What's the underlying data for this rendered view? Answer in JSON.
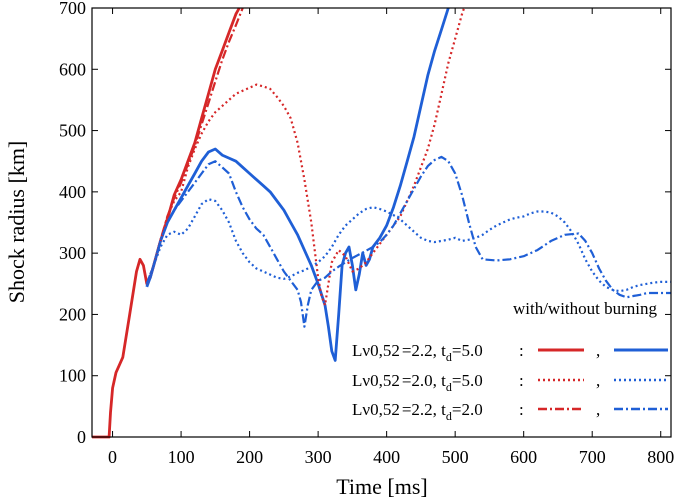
{
  "chart_data": {
    "type": "line",
    "xlabel": "Time [ms]",
    "ylabel": "Shock radius [km]",
    "xlim": [
      -30,
      815
    ],
    "ylim": [
      0,
      700
    ],
    "xticks": [
      0,
      100,
      200,
      300,
      400,
      500,
      600,
      700,
      800
    ],
    "yticks": [
      0,
      100,
      200,
      300,
      400,
      500,
      600,
      700
    ],
    "colors": {
      "with": "#d62728",
      "without": "#1f5fd6"
    },
    "legend": {
      "header": "with/without burning",
      "position": "bottom-right",
      "rows": [
        {
          "label_main": "Lν0,52",
          "label_sub": "=2.2, t",
          "td_sub": "d",
          "label_end": "=5.0",
          "colon": ":",
          "comma": ",",
          "style": "solid"
        },
        {
          "label_main": "Lν0,52",
          "label_sub": "=2.0, t",
          "td_sub": "d",
          "label_end": "=5.0",
          "colon": ":",
          "comma": ",",
          "style": "dotted"
        },
        {
          "label_main": "Lν0,52",
          "label_sub": "=2.2, t",
          "td_sub": "d",
          "label_end": "=2.0",
          "colon": ":",
          "comma": ",",
          "style": "dashdot"
        }
      ]
    },
    "series": [
      {
        "name": "Lν0,52=2.2, td=5.0 with burning",
        "color": "#d62728",
        "style": "solid",
        "points": [
          [
            -30,
            0
          ],
          [
            -5,
            0
          ],
          [
            -3,
            40
          ],
          [
            0,
            80
          ],
          [
            5,
            105
          ],
          [
            15,
            130
          ],
          [
            25,
            200
          ],
          [
            35,
            270
          ],
          [
            40,
            290
          ],
          [
            45,
            280
          ],
          [
            50,
            250
          ],
          [
            55,
            260
          ],
          [
            60,
            280
          ],
          [
            70,
            320
          ],
          [
            80,
            355
          ],
          [
            90,
            395
          ],
          [
            100,
            420
          ],
          [
            110,
            450
          ],
          [
            120,
            480
          ],
          [
            130,
            520
          ],
          [
            140,
            560
          ],
          [
            150,
            600
          ],
          [
            160,
            630
          ],
          [
            170,
            660
          ],
          [
            180,
            690
          ],
          [
            185,
            700
          ]
        ]
      },
      {
        "name": "Lν0,52=2.2, td=5.0 without burning",
        "color": "#1f5fd6",
        "style": "solid",
        "points": [
          [
            50,
            245
          ],
          [
            55,
            260
          ],
          [
            60,
            280
          ],
          [
            70,
            320
          ],
          [
            80,
            350
          ],
          [
            90,
            370
          ],
          [
            100,
            390
          ],
          [
            110,
            410
          ],
          [
            120,
            430
          ],
          [
            130,
            450
          ],
          [
            140,
            465
          ],
          [
            150,
            470
          ],
          [
            160,
            460
          ],
          [
            170,
            455
          ],
          [
            180,
            450
          ],
          [
            190,
            440
          ],
          [
            200,
            430
          ],
          [
            210,
            420
          ],
          [
            220,
            410
          ],
          [
            230,
            400
          ],
          [
            240,
            385
          ],
          [
            250,
            370
          ],
          [
            260,
            350
          ],
          [
            270,
            330
          ],
          [
            280,
            305
          ],
          [
            290,
            280
          ],
          [
            300,
            250
          ],
          [
            310,
            215
          ],
          [
            315,
            180
          ],
          [
            320,
            140
          ],
          [
            325,
            125
          ],
          [
            330,
            200
          ],
          [
            335,
            280
          ],
          [
            340,
            300
          ],
          [
            345,
            310
          ],
          [
            350,
            280
          ],
          [
            355,
            240
          ],
          [
            360,
            265
          ],
          [
            365,
            300
          ],
          [
            370,
            280
          ],
          [
            375,
            290
          ],
          [
            380,
            310
          ],
          [
            390,
            325
          ],
          [
            400,
            345
          ],
          [
            410,
            375
          ],
          [
            420,
            410
          ],
          [
            430,
            450
          ],
          [
            440,
            490
          ],
          [
            450,
            540
          ],
          [
            460,
            590
          ],
          [
            470,
            630
          ],
          [
            480,
            665
          ],
          [
            490,
            700
          ]
        ]
      },
      {
        "name": "Lν0,52=2.0, td=5.0 with burning",
        "color": "#d62728",
        "style": "dotted",
        "points": [
          [
            50,
            250
          ],
          [
            60,
            280
          ],
          [
            70,
            320
          ],
          [
            80,
            360
          ],
          [
            90,
            385
          ],
          [
            100,
            400
          ],
          [
            110,
            440
          ],
          [
            120,
            470
          ],
          [
            130,
            495
          ],
          [
            140,
            515
          ],
          [
            150,
            530
          ],
          [
            160,
            540
          ],
          [
            170,
            550
          ],
          [
            180,
            560
          ],
          [
            190,
            565
          ],
          [
            200,
            570
          ],
          [
            210,
            575
          ],
          [
            220,
            572
          ],
          [
            230,
            568
          ],
          [
            240,
            555
          ],
          [
            250,
            540
          ],
          [
            260,
            520
          ],
          [
            270,
            480
          ],
          [
            280,
            420
          ],
          [
            290,
            350
          ],
          [
            300,
            260
          ],
          [
            305,
            230
          ],
          [
            310,
            215
          ],
          [
            315,
            250
          ],
          [
            320,
            285
          ],
          [
            330,
            305
          ],
          [
            340,
            295
          ],
          [
            350,
            270
          ],
          [
            360,
            275
          ],
          [
            370,
            285
          ],
          [
            380,
            300
          ],
          [
            390,
            315
          ],
          [
            400,
            330
          ],
          [
            410,
            345
          ],
          [
            420,
            360
          ],
          [
            430,
            385
          ],
          [
            440,
            410
          ],
          [
            450,
            440
          ],
          [
            460,
            470
          ],
          [
            470,
            510
          ],
          [
            480,
            560
          ],
          [
            490,
            610
          ],
          [
            500,
            650
          ],
          [
            510,
            690
          ],
          [
            513,
            700
          ]
        ]
      },
      {
        "name": "Lν0,52=2.0, td=5.0 without burning",
        "color": "#1f5fd6",
        "style": "dotted",
        "points": [
          [
            50,
            250
          ],
          [
            60,
            280
          ],
          [
            70,
            310
          ],
          [
            80,
            330
          ],
          [
            90,
            335
          ],
          [
            100,
            330
          ],
          [
            110,
            340
          ],
          [
            120,
            360
          ],
          [
            130,
            380
          ],
          [
            140,
            388
          ],
          [
            150,
            385
          ],
          [
            160,
            370
          ],
          [
            170,
            350
          ],
          [
            180,
            320
          ],
          [
            190,
            300
          ],
          [
            200,
            285
          ],
          [
            210,
            275
          ],
          [
            220,
            270
          ],
          [
            230,
            265
          ],
          [
            240,
            260
          ],
          [
            250,
            258
          ],
          [
            260,
            262
          ],
          [
            270,
            268
          ],
          [
            280,
            272
          ],
          [
            290,
            278
          ],
          [
            300,
            285
          ],
          [
            310,
            295
          ],
          [
            320,
            310
          ],
          [
            330,
            330
          ],
          [
            340,
            345
          ],
          [
            350,
            355
          ],
          [
            360,
            365
          ],
          [
            370,
            372
          ],
          [
            380,
            375
          ],
          [
            390,
            372
          ],
          [
            400,
            368
          ],
          [
            410,
            362
          ],
          [
            420,
            355
          ],
          [
            430,
            345
          ],
          [
            440,
            335
          ],
          [
            450,
            325
          ],
          [
            460,
            320
          ],
          [
            470,
            318
          ],
          [
            480,
            320
          ],
          [
            490,
            322
          ],
          [
            500,
            325
          ],
          [
            510,
            320
          ],
          [
            520,
            322
          ],
          [
            530,
            325
          ],
          [
            540,
            330
          ],
          [
            550,
            338
          ],
          [
            560,
            345
          ],
          [
            570,
            350
          ],
          [
            580,
            355
          ],
          [
            590,
            358
          ],
          [
            600,
            360
          ],
          [
            610,
            365
          ],
          [
            620,
            368
          ],
          [
            630,
            368
          ],
          [
            640,
            366
          ],
          [
            650,
            360
          ],
          [
            660,
            350
          ],
          [
            670,
            335
          ],
          [
            680,
            315
          ],
          [
            690,
            290
          ],
          [
            700,
            270
          ],
          [
            710,
            255
          ],
          [
            720,
            245
          ],
          [
            730,
            240
          ],
          [
            740,
            238
          ],
          [
            750,
            240
          ],
          [
            760,
            245
          ],
          [
            770,
            248
          ],
          [
            780,
            250
          ],
          [
            790,
            252
          ],
          [
            800,
            253
          ],
          [
            815,
            253
          ]
        ]
      },
      {
        "name": "Lν0,52=2.2, td=2.0 with burning",
        "color": "#d62728",
        "style": "dashdot",
        "points": [
          [
            50,
            250
          ],
          [
            60,
            280
          ],
          [
            70,
            322
          ],
          [
            80,
            360
          ],
          [
            90,
            390
          ],
          [
            100,
            415
          ],
          [
            110,
            445
          ],
          [
            120,
            475
          ],
          [
            130,
            510
          ],
          [
            140,
            545
          ],
          [
            150,
            580
          ],
          [
            160,
            615
          ],
          [
            170,
            645
          ],
          [
            180,
            672
          ],
          [
            190,
            700
          ]
        ]
      },
      {
        "name": "Lν0,52=2.2, td=2.0 without burning",
        "color": "#1f5fd6",
        "style": "dashdot",
        "points": [
          [
            50,
            250
          ],
          [
            60,
            280
          ],
          [
            70,
            320
          ],
          [
            80,
            350
          ],
          [
            90,
            370
          ],
          [
            100,
            385
          ],
          [
            110,
            400
          ],
          [
            120,
            415
          ],
          [
            130,
            430
          ],
          [
            140,
            445
          ],
          [
            150,
            450
          ],
          [
            160,
            440
          ],
          [
            170,
            430
          ],
          [
            180,
            400
          ],
          [
            190,
            375
          ],
          [
            200,
            355
          ],
          [
            210,
            340
          ],
          [
            220,
            330
          ],
          [
            230,
            310
          ],
          [
            240,
            290
          ],
          [
            250,
            270
          ],
          [
            260,
            255
          ],
          [
            270,
            240
          ],
          [
            275,
            220
          ],
          [
            280,
            180
          ],
          [
            285,
            215
          ],
          [
            290,
            240
          ],
          [
            300,
            255
          ],
          [
            310,
            260
          ],
          [
            320,
            270
          ],
          [
            330,
            278
          ],
          [
            340,
            285
          ],
          [
            350,
            292
          ],
          [
            360,
            298
          ],
          [
            370,
            304
          ],
          [
            380,
            310
          ],
          [
            390,
            318
          ],
          [
            400,
            330
          ],
          [
            410,
            345
          ],
          [
            420,
            365
          ],
          [
            430,
            385
          ],
          [
            440,
            405
          ],
          [
            450,
            425
          ],
          [
            460,
            442
          ],
          [
            470,
            452
          ],
          [
            480,
            457
          ],
          [
            490,
            450
          ],
          [
            500,
            430
          ],
          [
            510,
            395
          ],
          [
            520,
            350
          ],
          [
            530,
            310
          ],
          [
            540,
            290
          ],
          [
            560,
            288
          ],
          [
            580,
            290
          ],
          [
            600,
            295
          ],
          [
            620,
            305
          ],
          [
            640,
            320
          ],
          [
            660,
            330
          ],
          [
            680,
            332
          ],
          [
            690,
            320
          ],
          [
            700,
            300
          ],
          [
            710,
            275
          ],
          [
            720,
            255
          ],
          [
            730,
            240
          ],
          [
            740,
            232
          ],
          [
            750,
            228
          ],
          [
            760,
            230
          ],
          [
            770,
            232
          ],
          [
            780,
            235
          ],
          [
            815,
            235
          ]
        ]
      }
    ]
  }
}
